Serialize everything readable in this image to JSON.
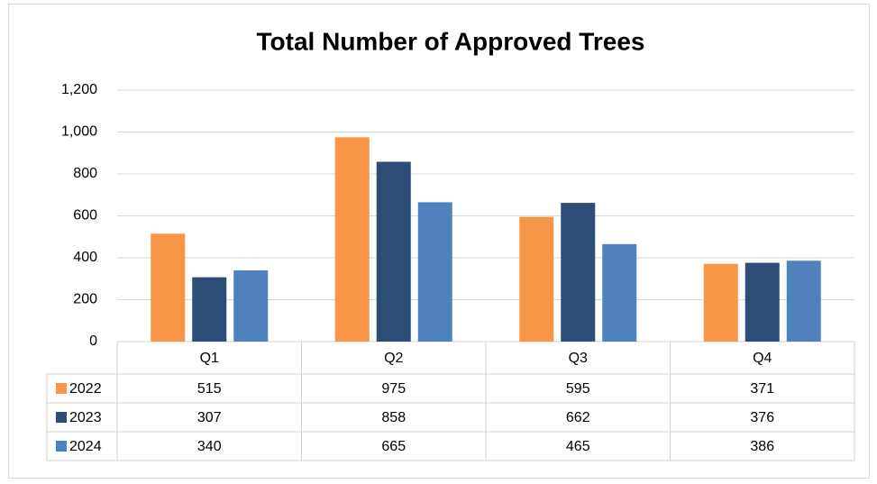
{
  "chart_data": {
    "type": "bar",
    "title": "Total Number of Approved Trees",
    "categories": [
      "Q1",
      "Q2",
      "Q3",
      "Q4"
    ],
    "series": [
      {
        "name": "2022",
        "color": "#f79646",
        "values": [
          515,
          975,
          595,
          371
        ]
      },
      {
        "name": "2023",
        "color": "#2c4d75",
        "values": [
          307,
          858,
          662,
          376
        ]
      },
      {
        "name": "2024",
        "color": "#4f81bd",
        "values": [
          340,
          665,
          465,
          386
        ]
      }
    ],
    "ylim": [
      0,
      1200
    ],
    "yticks": [
      0,
      200,
      400,
      600,
      800,
      {
        "value": 1000,
        "label": "1,000"
      },
      {
        "value": 1200,
        "label": "1,200"
      }
    ],
    "grid": true
  }
}
